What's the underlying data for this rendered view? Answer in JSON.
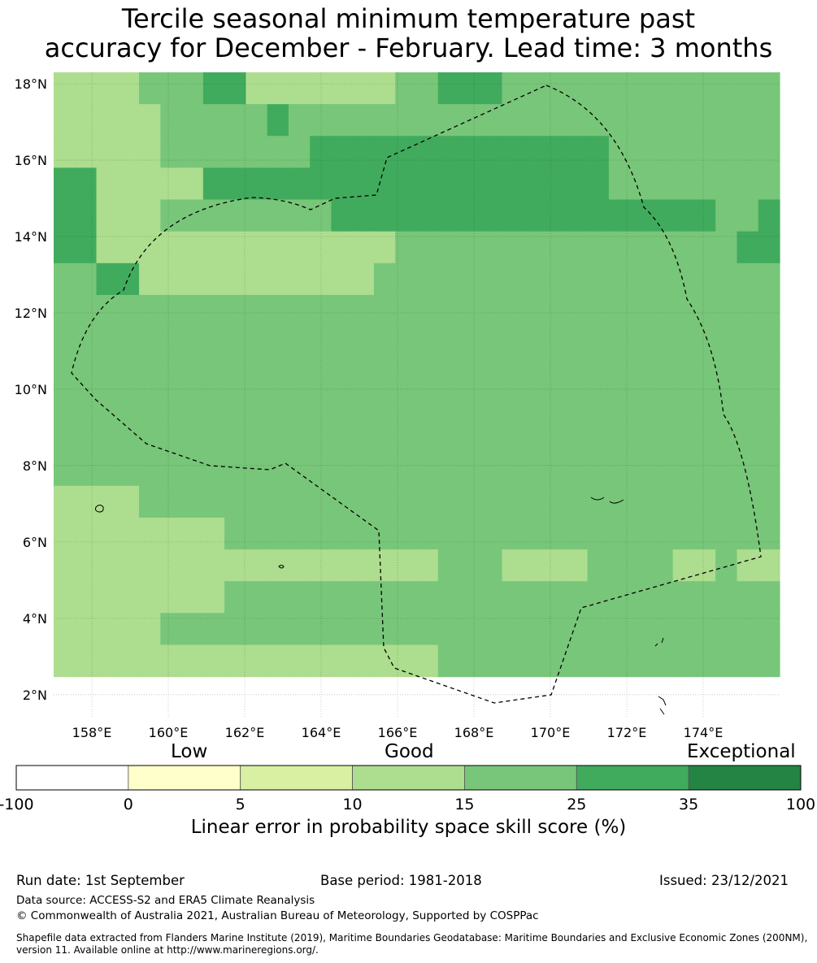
{
  "title": {
    "line1": "Tercile seasonal minimum temperature past",
    "line2": "accuracy for December - February. Lead time: 3 months"
  },
  "map": {
    "lat_ticks": [
      "2°N",
      "4°N",
      "6°N",
      "8°N",
      "10°N",
      "12°N",
      "14°N",
      "16°N",
      "18°N"
    ],
    "lon_ticks": [
      "158°E",
      "160°E",
      "162°E",
      "164°E",
      "166°E",
      "168°E",
      "170°E",
      "172°E",
      "174°E"
    ],
    "lon_range": [
      157.0,
      176.0
    ],
    "lat_range": [
      1.4,
      18.3
    ],
    "grid_cell_deg": 0.833,
    "eez_boundary": "Marshall Islands exclusive economic zone (dashed)",
    "skill_grid_classes": [
      "3333222113333333221112222222222222",
      "3333322222122222222222222222222222",
      "3333322222221111111111111122222222",
      "1133333111111111111111111122222222",
      "1133322222222111111111111111111221",
      "1133333333333333222222222222222211",
      "2211333333333332222222222222222222",
      "2222222222222222222222222222222222",
      "2222222222222222222222222222222222",
      "2222222222222222222222222222222222",
      "2222222222222222222222222222222222",
      "2222222222222222222222222222222222",
      "2222222222222222222222222222222222",
      "3333222222222222222222222222222222",
      "3333333322222222222222222222222222",
      "3333333333333333332223333222233233",
      "3333333322222222222222222222222222",
      "3333322222222222222222222222222222",
      "3333333333333333332222222222222222"
    ]
  },
  "colorbar": {
    "categories": [
      "Low",
      "Good",
      "Exceptional"
    ],
    "ticks": [
      "-100",
      "0",
      "5",
      "10",
      "15",
      "25",
      "35",
      "100"
    ],
    "colors": [
      "#ffffff",
      "#ffffcc",
      "#d9f0a3",
      "#addd8e",
      "#78c679",
      "#41ab5d",
      "#238443"
    ],
    "label": "Linear error in probability space skill score (%)"
  },
  "footer": {
    "run_date": "Run date: 1st September",
    "base_period": "Base period: 1981-2018",
    "issued": "Issued: 23/12/2021",
    "data_source": "Data source: ACCESS-S2 and ERA5 Climate Reanalysis",
    "copyright": "© Commonwealth of Australia 2021, Australian Bureau of Meteorology, Supported by COSPPac",
    "shapefile_line1": "Shapefile data extracted from Flanders Marine Institute (2019), Maritime Boundaries Geodatabase: Maritime Boundaries and Exclusive Economic Zones (200NM),",
    "shapefile_line2": "version 11. Available online at http://www.marineregions.org/."
  }
}
